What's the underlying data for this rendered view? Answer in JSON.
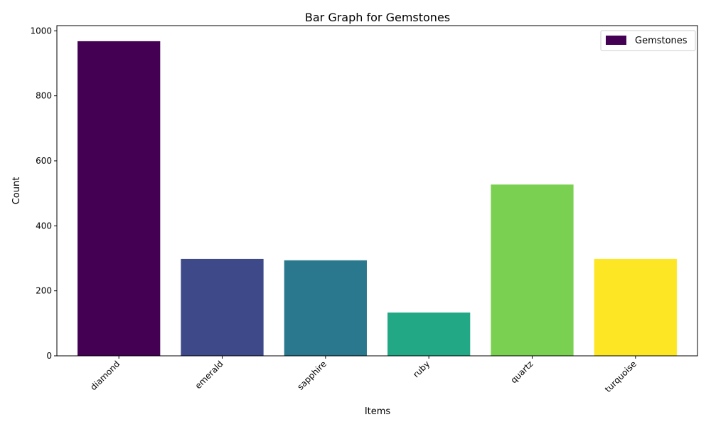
{
  "chart_data": {
    "type": "bar",
    "title": "Bar Graph for Gemstones",
    "xlabel": "Items",
    "ylabel": "Count",
    "categories": [
      "diamond",
      "emerald",
      "sapphire",
      "ruby",
      "quartz",
      "turquoise"
    ],
    "series": [
      {
        "name": "Gemstones",
        "values": [
          968,
          298,
          294,
          133,
          527,
          298
        ]
      }
    ],
    "colors": [
      "#440154",
      "#3e4989",
      "#2a788e",
      "#22a884",
      "#7ad151",
      "#fde725"
    ],
    "ylim": [
      0,
      1016
    ],
    "yticks": [
      0,
      200,
      400,
      600,
      800,
      1000
    ],
    "grid": false,
    "legend_position": "top-right"
  }
}
